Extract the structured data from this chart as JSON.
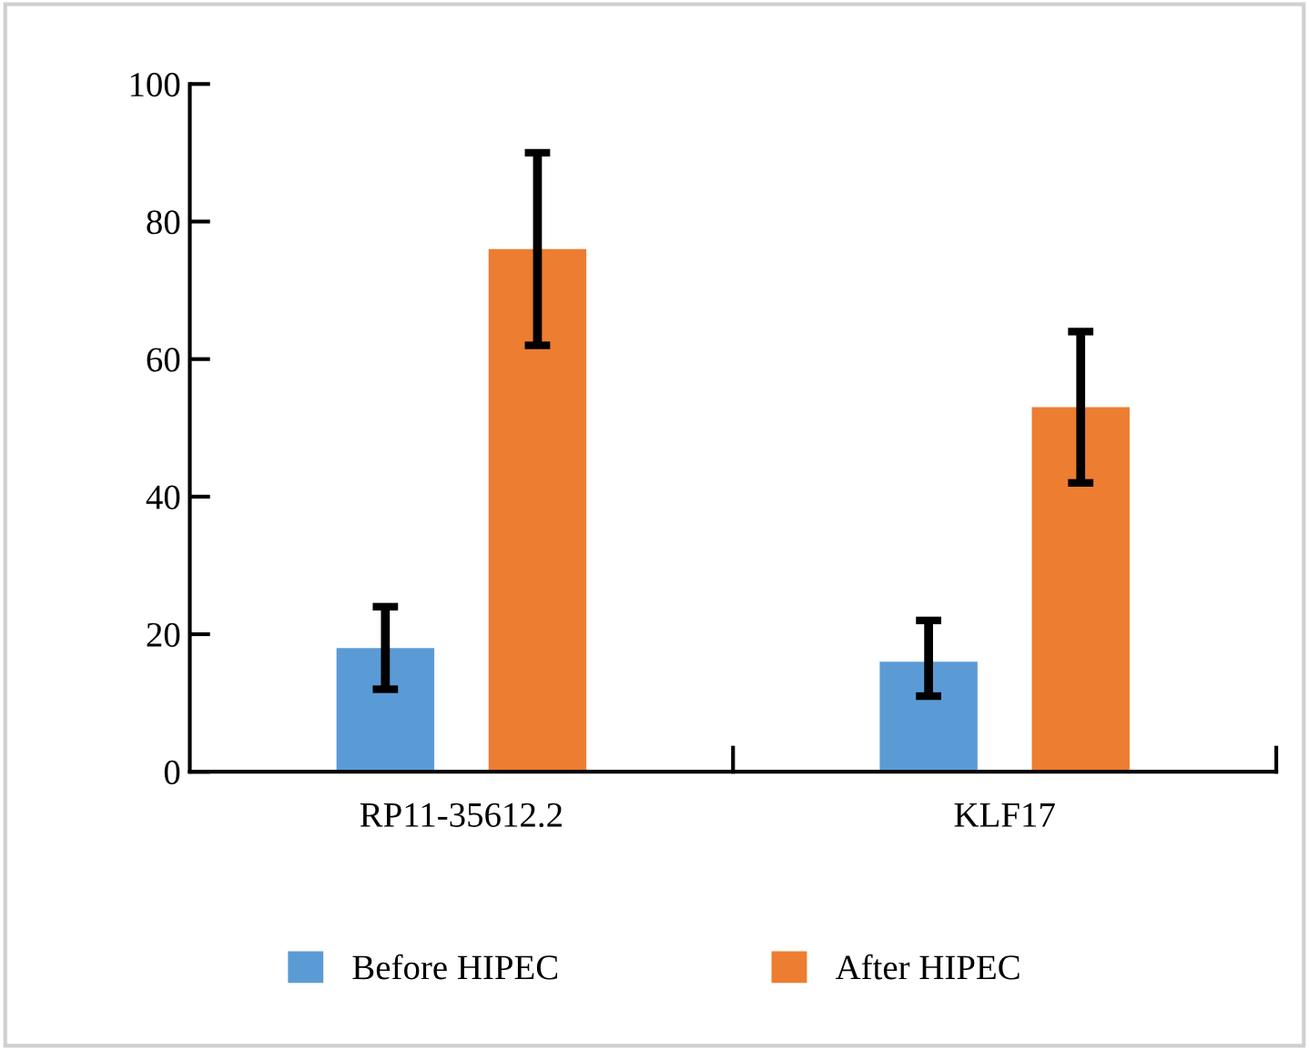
{
  "chart_data": {
    "type": "bar",
    "categories": [
      "RP11-35612.2",
      "KLF17"
    ],
    "series": [
      {
        "name": "Before HIPEC",
        "color": "#5b9bd5",
        "values": [
          18,
          16
        ],
        "errors": [
          [
            12,
            24
          ],
          [
            11,
            22
          ]
        ]
      },
      {
        "name": "After HIPEC",
        "color": "#ed7d31",
        "values": [
          76,
          53
        ],
        "errors": [
          [
            62,
            90
          ],
          [
            42,
            64
          ]
        ]
      }
    ],
    "ylim": [
      0,
      100
    ],
    "yticks": [
      0,
      20,
      40,
      60,
      80,
      100
    ],
    "grid": false,
    "legend": "bottom"
  }
}
